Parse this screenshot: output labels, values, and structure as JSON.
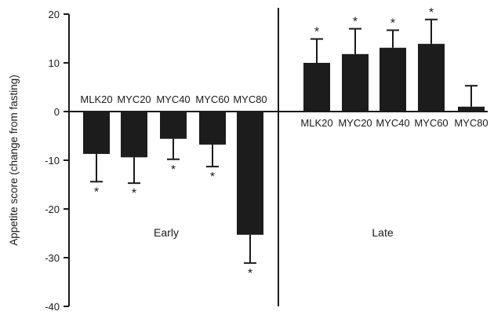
{
  "chart_data": {
    "type": "bar",
    "ylabel": "Appetite score (change from fasting)",
    "ylim": [
      -40,
      20
    ],
    "yticks": [
      20,
      10,
      0,
      -10,
      -20,
      -30,
      -40
    ],
    "grid": false,
    "legend": "none",
    "bar_color": "#1c1c1c",
    "groups": [
      {
        "name": "Early",
        "bars": [
          {
            "label": "MLK20",
            "value": -8.7,
            "error": 5.7,
            "significant": true
          },
          {
            "label": "MYC20",
            "value": -9.4,
            "error": 5.3,
            "significant": true
          },
          {
            "label": "MYC40",
            "value": -5.6,
            "error": 4.2,
            "significant": true
          },
          {
            "label": "MYC60",
            "value": -6.8,
            "error": 4.5,
            "significant": true
          },
          {
            "label": "MYC80",
            "value": -25.3,
            "error": 5.8,
            "significant": true
          }
        ]
      },
      {
        "name": "Late",
        "bars": [
          {
            "label": "MLK20",
            "value": 10.0,
            "error": 4.9,
            "significant": true
          },
          {
            "label": "MYC20",
            "value": 11.8,
            "error": 5.2,
            "significant": true
          },
          {
            "label": "MYC40",
            "value": 13.1,
            "error": 3.6,
            "significant": true
          },
          {
            "label": "MYC60",
            "value": 13.9,
            "error": 5.0,
            "significant": true
          },
          {
            "label": "MYC80",
            "value": 1.0,
            "error": 4.3,
            "significant": false
          }
        ]
      }
    ],
    "significance_marker": "*"
  }
}
